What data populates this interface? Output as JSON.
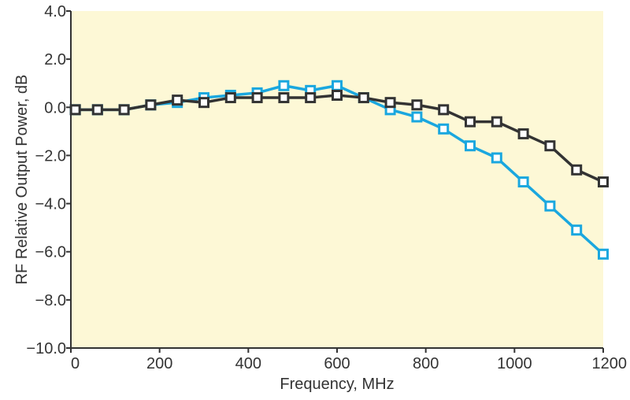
{
  "chart_data": {
    "type": "line",
    "xlabel": "Frequency, MHz",
    "ylabel": "RF Relative Output Power, dB",
    "xlim": [
      0,
      1200
    ],
    "ylim": [
      -10,
      4
    ],
    "xticks": [
      0,
      200,
      400,
      600,
      800,
      1000,
      1200
    ],
    "xtick_labels": [
      "0",
      "200",
      "400",
      "600",
      "800",
      "1000",
      "1200"
    ],
    "yticks": [
      4,
      2,
      0,
      -2,
      -4,
      -6,
      -8,
      -10
    ],
    "ytick_labels": [
      "4.0",
      "2.0",
      "0.0",
      "−2.0",
      "−4.0",
      "−6.0",
      "−8.0",
      "−10.0"
    ],
    "grid": false,
    "background": "#fdf8d6",
    "x": [
      10,
      60,
      120,
      180,
      240,
      300,
      360,
      420,
      480,
      540,
      600,
      660,
      720,
      780,
      840,
      900,
      960,
      1020,
      1080,
      1140,
      1200
    ],
    "series": [
      {
        "color": "#1aa7df",
        "values": [
          -0.1,
          -0.1,
          -0.1,
          0.1,
          0.2,
          0.4,
          0.5,
          0.6,
          0.9,
          0.7,
          0.9,
          0.4,
          -0.1,
          -0.4,
          -0.9,
          -1.6,
          -2.1,
          -3.1,
          -4.1,
          -5.1,
          -6.1
        ]
      },
      {
        "color": "#333333",
        "values": [
          -0.1,
          -0.1,
          -0.1,
          0.1,
          0.3,
          0.2,
          0.4,
          0.4,
          0.4,
          0.4,
          0.5,
          0.4,
          0.2,
          0.1,
          -0.1,
          -0.6,
          -0.6,
          -1.1,
          -1.6,
          -2.6,
          -3.1
        ]
      }
    ]
  }
}
